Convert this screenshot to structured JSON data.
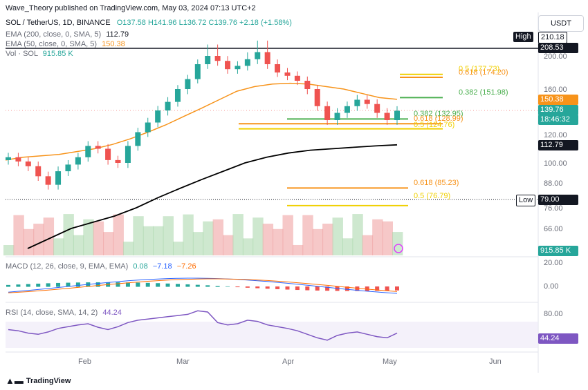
{
  "publisher": "Wave_Theory published on TradingView.com, May 03, 2024 07:13 UTC+2",
  "header": {
    "symbol": "SOL / TetherUS, 1D, BINANCE",
    "ohlc": "O137.58 H141.96 L136.72 C139.76 +2.18 (+1.58%)",
    "ema200_label": "EMA (200, close, 0, SMA, 5)",
    "ema200_value": "112.79",
    "ema50_label": "EMA (50, close, 0, SMA, 5)",
    "ema50_value": "150.38",
    "vol_label": "Vol · SOL",
    "vol_value": "915.85 K"
  },
  "currency": "USDT",
  "colors": {
    "up": "#26a69a",
    "down": "#ef5350",
    "ema50": "#f7931a",
    "ema200": "#000000",
    "fib_green": "#4caf50",
    "fib_orange": "#f7931a",
    "fib_yellow": "#f0d000",
    "macd": "#2962ff",
    "signal": "#ff6d00",
    "rsi": "#7e57c2"
  },
  "price_axis": {
    "ticks": [
      "200.00",
      "160.00",
      "140.00",
      "120.00",
      "100.00",
      "88.00",
      "76.00",
      "66.00"
    ]
  },
  "price_tags": {
    "high_label": "High",
    "high_value": "210.18",
    "line_value": "208.53",
    "ema50_tag": "150.38",
    "last_price": "139.76",
    "countdown": "18:46:32",
    "ema200_tag": "112.79",
    "low_label": "Low",
    "low_value": "79.00",
    "vol_tag": "915.85 K"
  },
  "fib_levels": [
    {
      "label": "0.5 (177.73)",
      "value": 177.73,
      "color": "#f0d000"
    },
    {
      "label": "0.618 (174.20)",
      "value": 174.2,
      "color": "#f7931a"
    },
    {
      "label": "0.382 (151.98)",
      "value": 151.98,
      "color": "#4caf50"
    },
    {
      "label": "0.382 (132.95)",
      "value": 132.95,
      "color": "#4caf50"
    },
    {
      "label": "0.618 (128.99)",
      "value": 128.99,
      "color": "#f7931a"
    },
    {
      "label": "0.5 (124.76)",
      "value": 124.76,
      "color": "#f0d000"
    },
    {
      "label": "0.618 (85.23)",
      "value": 85.23,
      "color": "#f7931a"
    },
    {
      "label": "0.5 (76.79)",
      "value": 76.79,
      "color": "#f0d000"
    }
  ],
  "macd": {
    "label": "MACD (12, 26, close, 9, EMA, EMA)",
    "v1": "0.08",
    "v2": "−7.18",
    "v3": "−7.26",
    "ticks": [
      "20.00",
      "0.00"
    ]
  },
  "rsi": {
    "label": "RSI (14, close, SMA, 14, 2)",
    "value": "44.24",
    "ticks": [
      "80.00"
    ],
    "tag": "44.24"
  },
  "x_axis": [
    "Feb",
    "Mar",
    "Apr",
    "May",
    "Jun"
  ],
  "brand": "TradingView",
  "chart_data": {
    "type": "candlestick",
    "title": "SOL / TetherUS, 1D, BINANCE",
    "last_ohlc": {
      "open": 137.58,
      "high": 141.96,
      "low": 136.72,
      "close": 139.76
    },
    "ema50": [
      102,
      104,
      105,
      106,
      108,
      110,
      113,
      117,
      122,
      128,
      135,
      142,
      150,
      158,
      163,
      166,
      167,
      166,
      163,
      160,
      156,
      152,
      150.38
    ],
    "ema200": [
      60,
      63,
      66,
      69,
      72,
      76,
      80,
      85,
      90,
      95,
      100,
      104,
      107,
      109,
      110,
      111,
      112,
      112.79
    ],
    "closes": [
      104,
      101,
      98,
      92,
      87,
      95,
      99,
      104,
      112,
      110,
      102,
      100,
      112,
      122,
      130,
      140,
      148,
      160,
      172,
      190,
      200,
      194,
      184,
      188,
      196,
      202,
      190,
      180,
      176,
      170,
      160,
      144,
      132,
      138,
      144,
      150,
      146,
      138,
      132,
      139.76
    ]
  }
}
